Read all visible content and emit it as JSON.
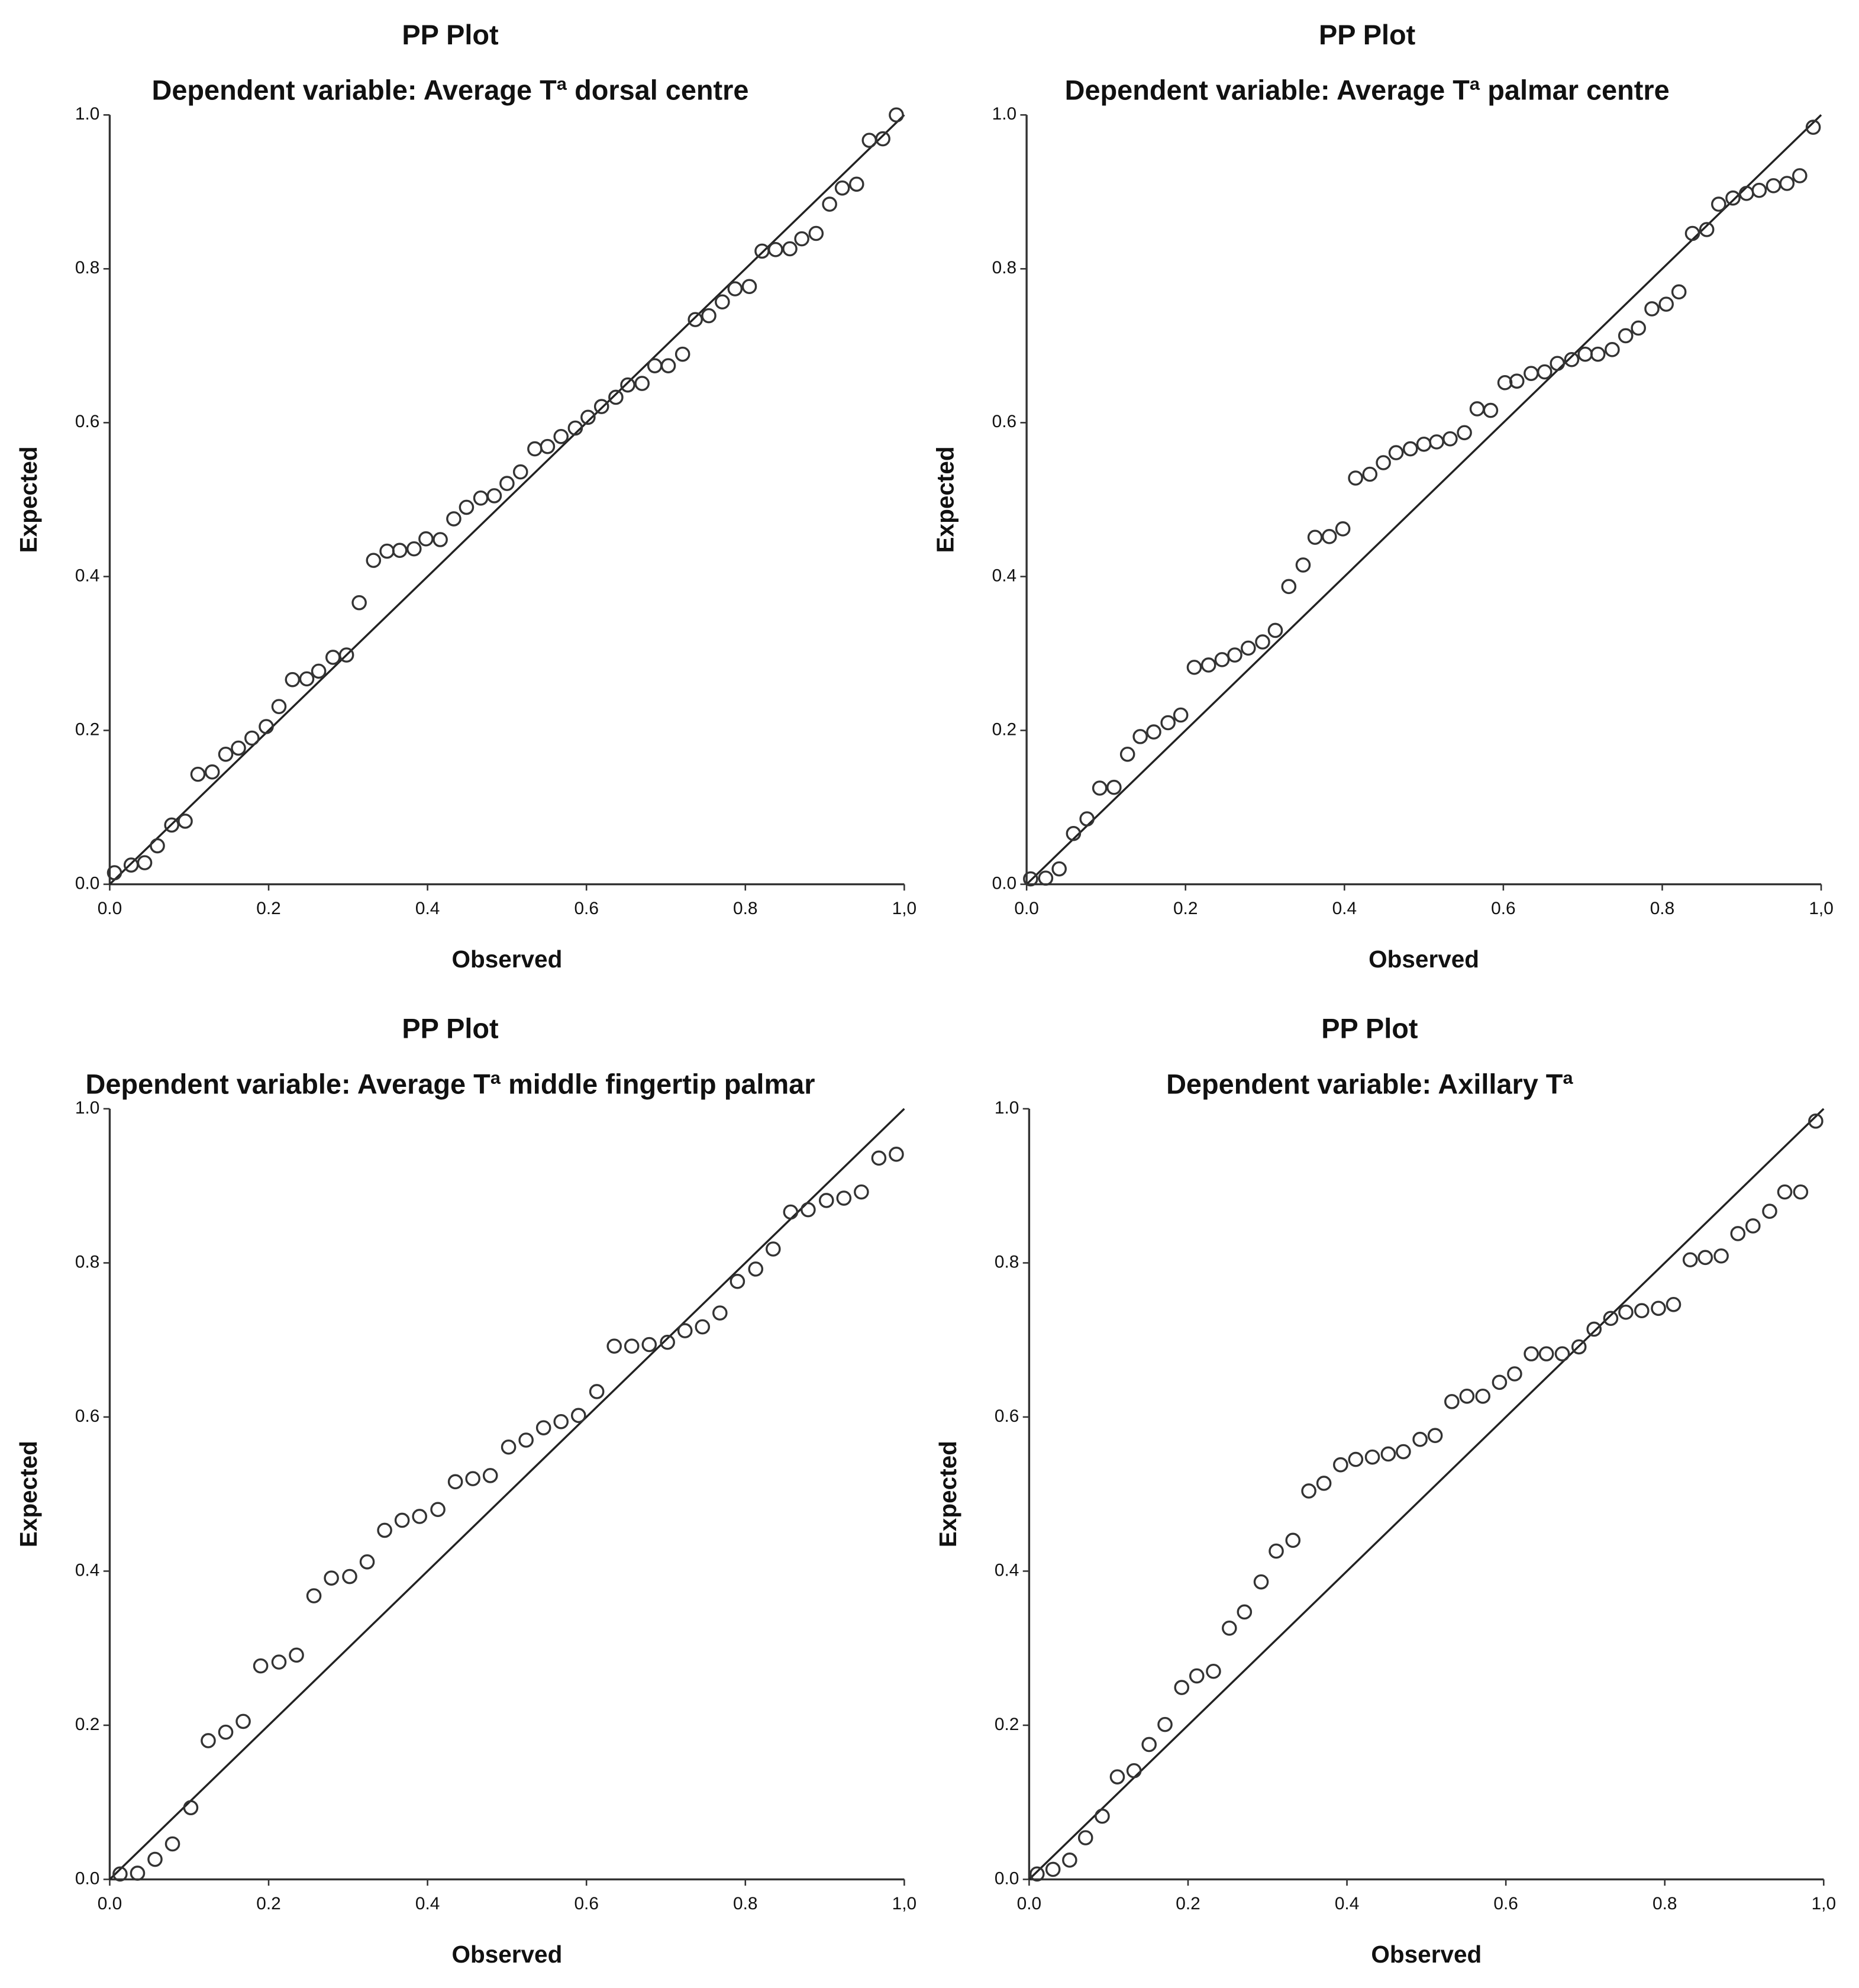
{
  "chart_data": [
    {
      "type": "scatter",
      "title": "PP Plot",
      "subtitle": "Dependent variable: Average Tª dorsal centre",
      "x_label": "Observed",
      "y_label": "Expected",
      "color": "#333333",
      "x": [
        0.006,
        0.027,
        0.044,
        0.06,
        0.078,
        0.095,
        0.111,
        0.129,
        0.146,
        0.162,
        0.179,
        0.197,
        0.213,
        0.23,
        0.248,
        0.263,
        0.281,
        0.298,
        0.314,
        0.332,
        0.349,
        0.365,
        0.383,
        0.398,
        0.416,
        0.433,
        0.449,
        0.467,
        0.484,
        0.5,
        0.517,
        0.535,
        0.551,
        0.568,
        0.586,
        0.602,
        0.619,
        0.637,
        0.652,
        0.67,
        0.686,
        0.703,
        0.721,
        0.737,
        0.754,
        0.771,
        0.787,
        0.805,
        0.821,
        0.838,
        0.856,
        0.871,
        0.889,
        0.906,
        0.922,
        0.94,
        0.956,
        0.973,
        0.99
      ],
      "values": [
        0.015,
        0.025,
        0.028,
        0.05,
        0.077,
        0.082,
        0.143,
        0.146,
        0.169,
        0.177,
        0.19,
        0.205,
        0.231,
        0.266,
        0.267,
        0.277,
        0.295,
        0.298,
        0.366,
        0.421,
        0.433,
        0.434,
        0.436,
        0.449,
        0.448,
        0.475,
        0.49,
        0.502,
        0.505,
        0.521,
        0.536,
        0.566,
        0.569,
        0.582,
        0.593,
        0.607,
        0.621,
        0.633,
        0.649,
        0.651,
        0.674,
        0.674,
        0.689,
        0.734,
        0.739,
        0.757,
        0.774,
        0.777,
        0.823,
        0.825,
        0.826,
        0.839,
        0.846,
        0.884,
        0.905,
        0.91,
        0.967,
        0.969,
        1.0
      ],
      "xlim": [
        0,
        1
      ],
      "ylim": [
        0,
        1
      ],
      "xticks": [
        {
          "value": 0,
          "label": "0.0"
        },
        {
          "value": 0.2,
          "label": "0.2"
        },
        {
          "value": 0.4,
          "label": "0.4"
        },
        {
          "value": 0.6,
          "label": "0.6"
        },
        {
          "value": 0.8,
          "label": "0.8"
        },
        {
          "value": 1,
          "label": "1,0"
        }
      ],
      "yticks": [
        {
          "value": 0,
          "label": "0.0"
        },
        {
          "value": 0.2,
          "label": "0.2"
        },
        {
          "value": 0.4,
          "label": "0.4"
        },
        {
          "value": 0.6,
          "label": "0.6"
        },
        {
          "value": 0.8,
          "label": "0.8"
        },
        {
          "value": 1,
          "label": "1.0"
        }
      ]
    },
    {
      "type": "scatter",
      "title": "PP Plot",
      "subtitle": "Dependent variable: Average Tª palmar centre",
      "x_label": "Observed",
      "y_label": "Expected",
      "color": "#333333",
      "x": [
        0.005,
        0.024,
        0.041,
        0.059,
        0.076,
        0.092,
        0.11,
        0.127,
        0.143,
        0.16,
        0.178,
        0.194,
        0.211,
        0.229,
        0.246,
        0.262,
        0.279,
        0.297,
        0.313,
        0.33,
        0.348,
        0.363,
        0.381,
        0.398,
        0.414,
        0.432,
        0.449,
        0.465,
        0.483,
        0.5,
        0.516,
        0.533,
        0.551,
        0.567,
        0.584,
        0.602,
        0.617,
        0.635,
        0.652,
        0.668,
        0.686,
        0.703,
        0.719,
        0.737,
        0.754,
        0.77,
        0.787,
        0.805,
        0.821,
        0.838,
        0.856,
        0.871,
        0.889,
        0.906,
        0.922,
        0.94,
        0.957,
        0.973,
        0.99
      ],
      "values": [
        0.007,
        0.008,
        0.02,
        0.066,
        0.085,
        0.125,
        0.126,
        0.169,
        0.192,
        0.198,
        0.21,
        0.22,
        0.282,
        0.285,
        0.292,
        0.298,
        0.307,
        0.315,
        0.33,
        0.387,
        0.415,
        0.451,
        0.452,
        0.462,
        0.528,
        0.533,
        0.548,
        0.561,
        0.566,
        0.572,
        0.575,
        0.579,
        0.587,
        0.618,
        0.616,
        0.652,
        0.654,
        0.664,
        0.666,
        0.677,
        0.682,
        0.689,
        0.689,
        0.695,
        0.713,
        0.723,
        0.748,
        0.754,
        0.77,
        0.846,
        0.851,
        0.884,
        0.892,
        0.898,
        0.902,
        0.908,
        0.911,
        0.921,
        0.984
      ],
      "xlim": [
        0,
        1
      ],
      "ylim": [
        0,
        1
      ],
      "xticks": [
        {
          "value": 0,
          "label": "0.0"
        },
        {
          "value": 0.2,
          "label": "0.2"
        },
        {
          "value": 0.4,
          "label": "0.4"
        },
        {
          "value": 0.6,
          "label": "0.6"
        },
        {
          "value": 0.8,
          "label": "0.8"
        },
        {
          "value": 1,
          "label": "1,0"
        }
      ],
      "yticks": [
        {
          "value": 0,
          "label": "0.0"
        },
        {
          "value": 0.2,
          "label": "0.2"
        },
        {
          "value": 0.4,
          "label": "0.4"
        },
        {
          "value": 0.6,
          "label": "0.6"
        },
        {
          "value": 0.8,
          "label": "0.8"
        },
        {
          "value": 1,
          "label": "1.0"
        }
      ]
    },
    {
      "type": "scatter",
      "title": "PP Plot",
      "subtitle": "Dependent variable: Average Tª middle fingertip palmar",
      "x_label": "Observed",
      "y_label": "Expected",
      "color": "#333333",
      "x": [
        0.013,
        0.035,
        0.057,
        0.079,
        0.102,
        0.124,
        0.146,
        0.168,
        0.19,
        0.213,
        0.235,
        0.257,
        0.279,
        0.302,
        0.324,
        0.346,
        0.368,
        0.39,
        0.413,
        0.435,
        0.457,
        0.479,
        0.502,
        0.524,
        0.546,
        0.568,
        0.59,
        0.613,
        0.635,
        0.657,
        0.679,
        0.702,
        0.724,
        0.746,
        0.768,
        0.79,
        0.813,
        0.835,
        0.857,
        0.879,
        0.902,
        0.924,
        0.946,
        0.968,
        0.99
      ],
      "values": [
        0.007,
        0.008,
        0.026,
        0.046,
        0.093,
        0.18,
        0.191,
        0.205,
        0.277,
        0.282,
        0.291,
        0.368,
        0.391,
        0.393,
        0.412,
        0.453,
        0.466,
        0.471,
        0.48,
        0.516,
        0.52,
        0.524,
        0.561,
        0.57,
        0.586,
        0.594,
        0.602,
        0.633,
        0.692,
        0.692,
        0.694,
        0.697,
        0.712,
        0.717,
        0.735,
        0.776,
        0.792,
        0.818,
        0.866,
        0.869,
        0.881,
        0.884,
        0.892,
        0.936,
        0.941
      ],
      "xlim": [
        0,
        1
      ],
      "ylim": [
        0,
        1
      ],
      "xticks": [
        {
          "value": 0,
          "label": "0.0"
        },
        {
          "value": 0.2,
          "label": "0.2"
        },
        {
          "value": 0.4,
          "label": "0.4"
        },
        {
          "value": 0.6,
          "label": "0.6"
        },
        {
          "value": 0.8,
          "label": "0.8"
        },
        {
          "value": 1,
          "label": "1,0"
        }
      ],
      "yticks": [
        {
          "value": 0,
          "label": "0.0"
        },
        {
          "value": 0.2,
          "label": "0.2"
        },
        {
          "value": 0.4,
          "label": "0.4"
        },
        {
          "value": 0.6,
          "label": "0.6"
        },
        {
          "value": 0.8,
          "label": "0.8"
        },
        {
          "value": 1,
          "label": "1.0"
        }
      ]
    },
    {
      "type": "scatter",
      "title": "PP Plot",
      "subtitle": "Dependent variable: Axillary Tª",
      "x_label": "Observed",
      "y_label": "Expected",
      "color": "#333333",
      "x": [
        0.01,
        0.03,
        0.051,
        0.071,
        0.092,
        0.111,
        0.132,
        0.151,
        0.171,
        0.192,
        0.211,
        0.232,
        0.252,
        0.271,
        0.292,
        0.311,
        0.332,
        0.352,
        0.371,
        0.392,
        0.411,
        0.432,
        0.452,
        0.471,
        0.492,
        0.511,
        0.532,
        0.551,
        0.571,
        0.592,
        0.611,
        0.632,
        0.651,
        0.671,
        0.692,
        0.711,
        0.732,
        0.751,
        0.771,
        0.792,
        0.811,
        0.832,
        0.851,
        0.871,
        0.892,
        0.911,
        0.932,
        0.951,
        0.971,
        0.99
      ],
      "values": [
        0.007,
        0.013,
        0.025,
        0.054,
        0.082,
        0.133,
        0.141,
        0.175,
        0.201,
        0.249,
        0.264,
        0.27,
        0.326,
        0.347,
        0.386,
        0.426,
        0.44,
        0.504,
        0.514,
        0.538,
        0.545,
        0.548,
        0.552,
        0.555,
        0.571,
        0.576,
        0.62,
        0.627,
        0.627,
        0.645,
        0.656,
        0.682,
        0.682,
        0.682,
        0.691,
        0.714,
        0.728,
        0.736,
        0.738,
        0.741,
        0.746,
        0.804,
        0.807,
        0.809,
        0.838,
        0.848,
        0.867,
        0.892,
        0.892,
        0.984
      ],
      "xlim": [
        0,
        1
      ],
      "ylim": [
        0,
        1
      ],
      "xticks": [
        {
          "value": 0,
          "label": "0.0"
        },
        {
          "value": 0.2,
          "label": "0.2"
        },
        {
          "value": 0.4,
          "label": "0.4"
        },
        {
          "value": 0.6,
          "label": "0.6"
        },
        {
          "value": 0.8,
          "label": "0.8"
        },
        {
          "value": 1,
          "label": "1,0"
        }
      ],
      "yticks": [
        {
          "value": 0,
          "label": "0.0"
        },
        {
          "value": 0.2,
          "label": "0.2"
        },
        {
          "value": 0.4,
          "label": "0.4"
        },
        {
          "value": 0.6,
          "label": "0.6"
        },
        {
          "value": 0.8,
          "label": "0.8"
        },
        {
          "value": 1,
          "label": "1.0"
        }
      ]
    }
  ]
}
